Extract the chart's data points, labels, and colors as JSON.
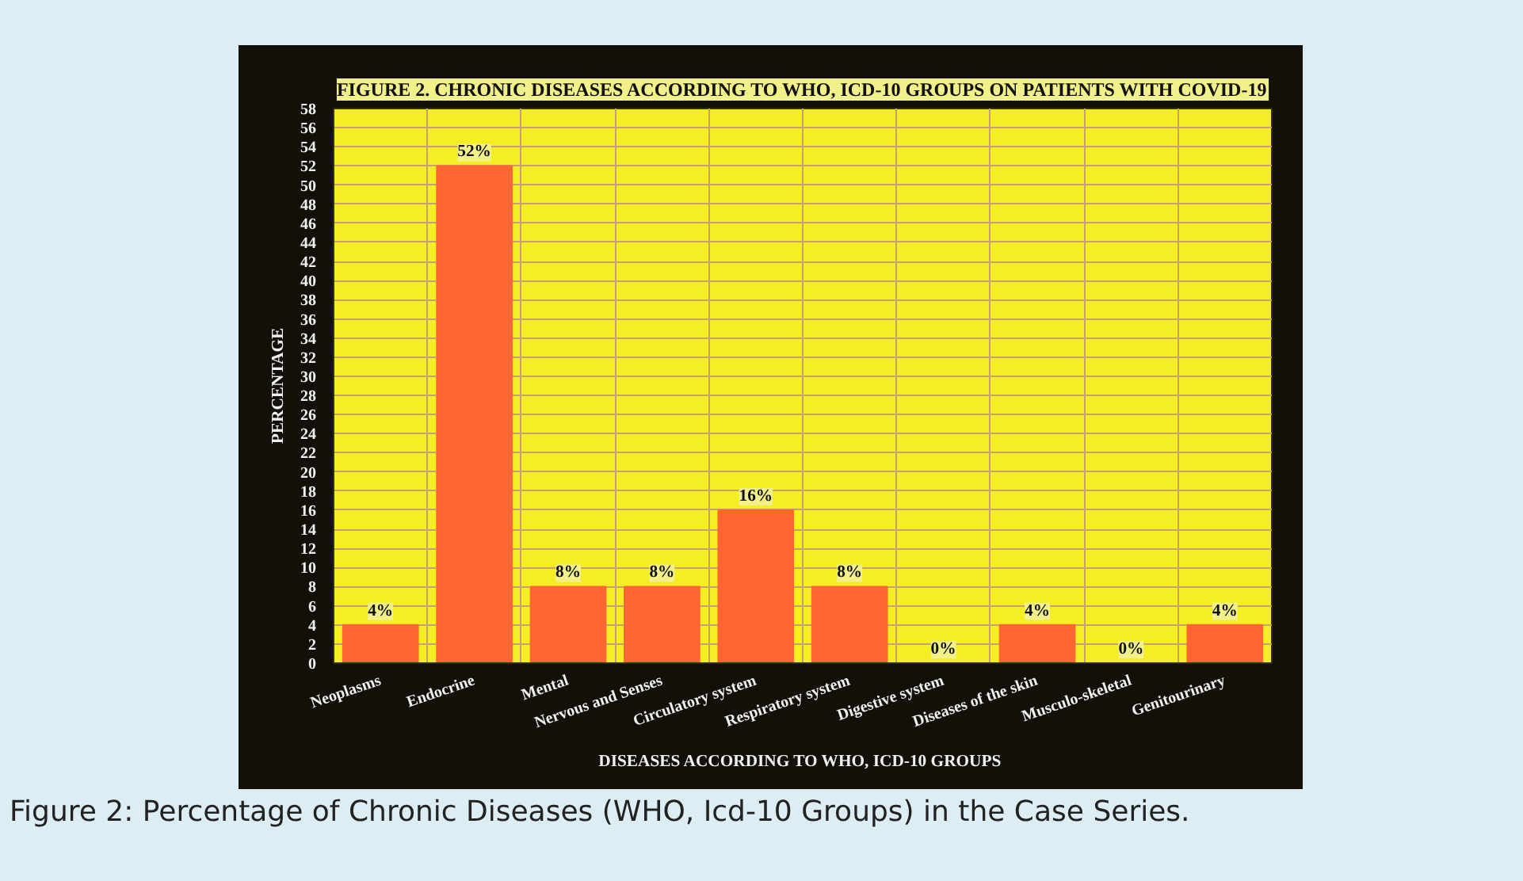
{
  "chart_data": {
    "type": "bar",
    "title": "FIGURE 2. CHRONIC DISEASES ACCORDING TO WHO, ICD-10 GROUPS ON PATIENTS WITH COVID-19",
    "xlabel": "DISEASES ACCORDING TO WHO,  ICD-10 GROUPS",
    "ylabel": "PERCENTAGE",
    "categories": [
      "Neoplasms",
      "Endocrine",
      "Mental",
      "Nervous and Senses",
      "Circulatory system",
      "Respiratory system",
      "Digestive system",
      "Diseases of the skin",
      "Musculo-skeletal",
      "Genitourinary"
    ],
    "values": [
      4,
      52,
      8,
      8,
      16,
      8,
      0,
      4,
      0,
      4
    ],
    "value_labels": [
      "4%",
      "52%",
      "8%",
      "8%",
      "16%",
      "8%",
      "0%",
      "4%",
      "0%",
      "4%"
    ],
    "color": "#ff6633",
    "ylim": [
      0,
      58
    ],
    "yticks": [
      0,
      2,
      4,
      6,
      8,
      10,
      12,
      14,
      16,
      18,
      20,
      22,
      24,
      26,
      28,
      30,
      32,
      34,
      36,
      38,
      40,
      42,
      44,
      46,
      48,
      50,
      52,
      54,
      56,
      58
    ],
    "grid": true,
    "legend": false,
    "annotations": [
      "Figure 2: Percentage of Chronic Diseases (WHO, Icd-10 Groups) in the Case Series."
    ]
  }
}
